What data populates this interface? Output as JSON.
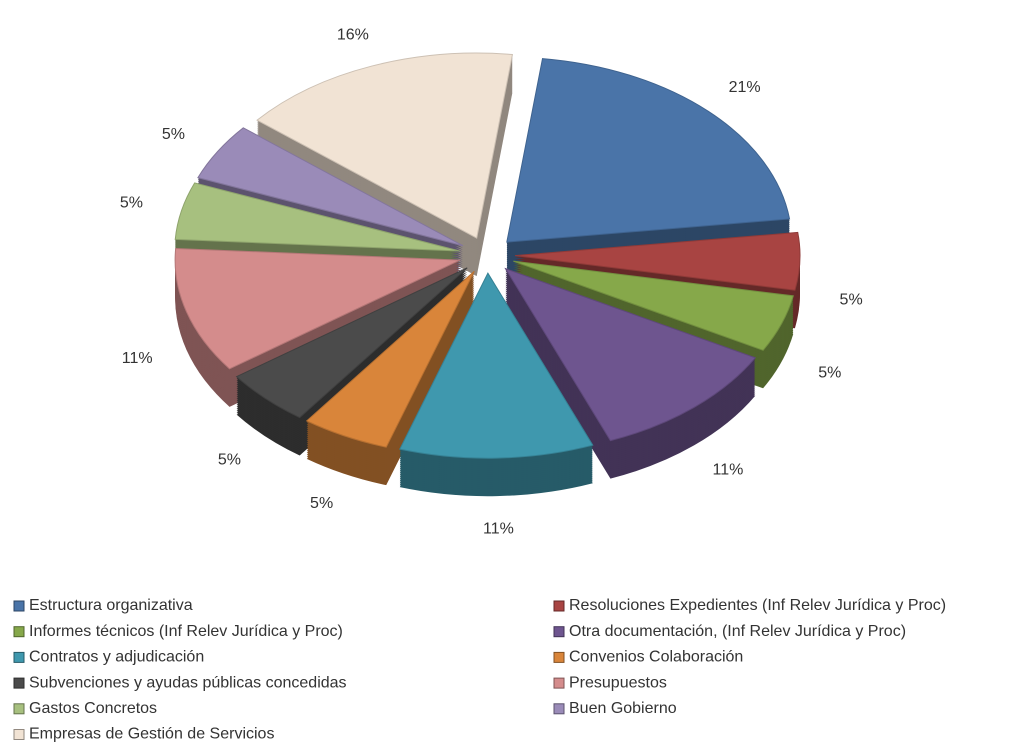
{
  "chart_data": {
    "type": "pie",
    "categories": [
      "Estructura organizativa",
      "Resoluciones Expedientes (Inf Relev Jurídica y Proc)",
      "Informes técnicos (Inf Relev Jurídica y Proc)",
      "Otra documentación, (Inf Relev Jurídica y Proc)",
      "Contratos y adjudicación",
      "Convenios Colaboración",
      "Subvenciones y ayudas públicas concedidas",
      "Presupuestos",
      "Gastos Concretos",
      "Buen Gobierno",
      "Empresas de Gestión de Servicios"
    ],
    "values": [
      21,
      5,
      5,
      11,
      11,
      5,
      5,
      11,
      5,
      5,
      16
    ],
    "value_labels": [
      "21%",
      "5%",
      "5%",
      "11%",
      "11%",
      "5%",
      "5%",
      "11%",
      "5%",
      "5%",
      "16%"
    ],
    "colors": [
      "#4a74a8",
      "#a84442",
      "#86a84a",
      "#6e558f",
      "#3f98ae",
      "#d9853a",
      "#4b4b4b",
      "#d48c8c",
      "#a7c07f",
      "#9a8bb8",
      "#f1e3d4"
    ],
    "legend": "bottom"
  }
}
